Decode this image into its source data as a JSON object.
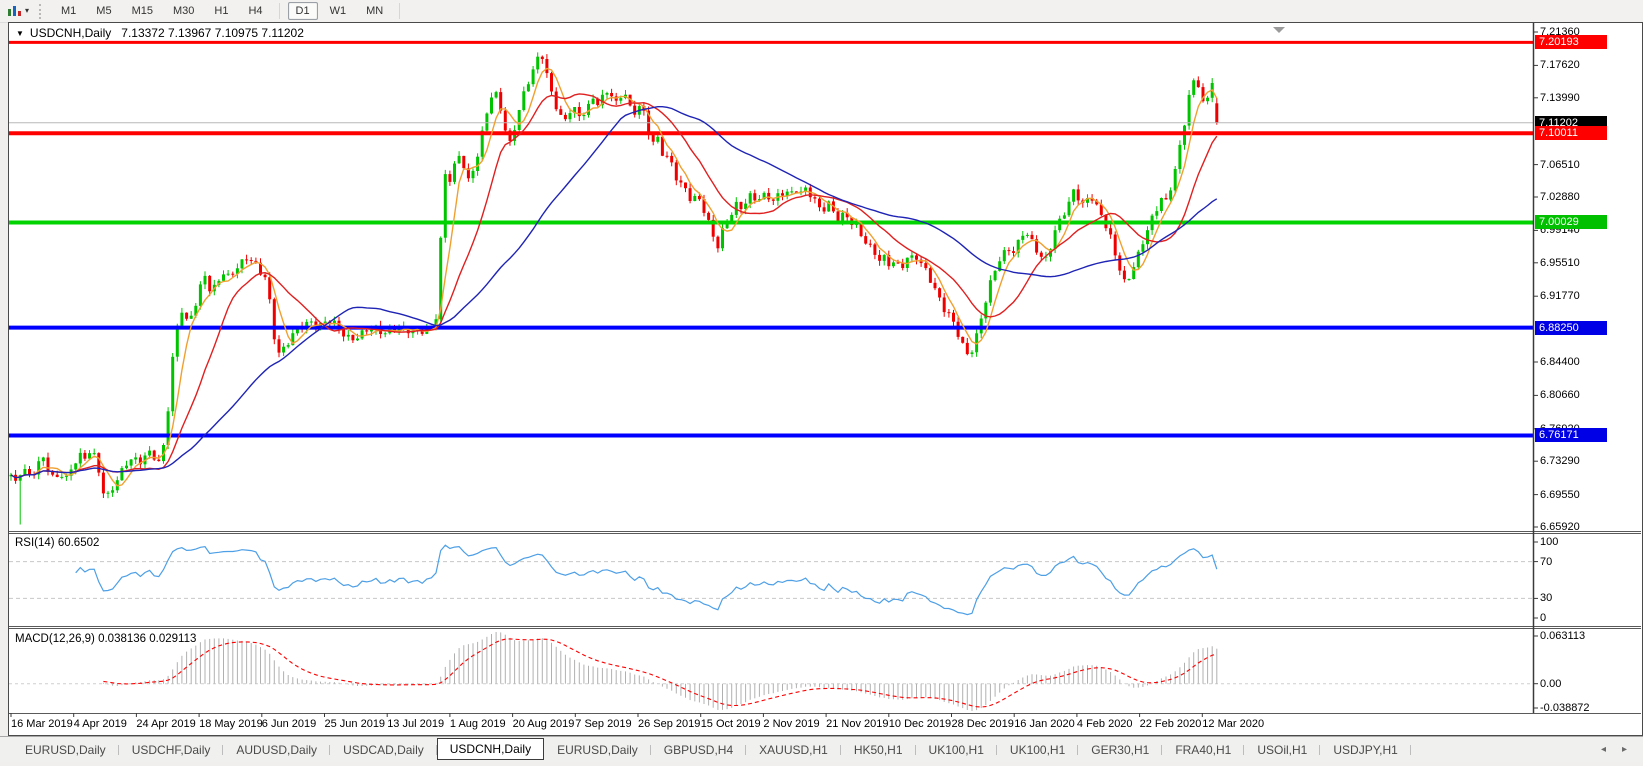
{
  "toolbar": {
    "timeframes": [
      "M1",
      "M5",
      "M15",
      "M30",
      "H1",
      "H4",
      "D1",
      "W1",
      "MN"
    ],
    "active_timeframe": "D1",
    "caret_glyph": "▾"
  },
  "chart": {
    "symbol_period": "USDCNH,Daily",
    "ohlc": "7.13372 7.13967 7.10975 7.11202",
    "collapse_glyph": "▼"
  },
  "chart_data": {
    "type": "candlestick",
    "symbol": "USDCNH",
    "period": "Daily",
    "current_bar": {
      "open": 7.13372,
      "high": 7.13967,
      "low": 7.10975,
      "close": 7.11202
    },
    "candle_colors": {
      "up": "#00c400",
      "down": "#ef0000"
    },
    "y_axis": {
      "top": 7.2136,
      "bottom": 6.6592,
      "ticks": [
        7.2136,
        7.1762,
        7.1399,
        7.0651,
        7.0288,
        6.9914,
        6.9551,
        6.9177,
        6.844,
        6.8066,
        6.7692,
        6.7329,
        6.6955,
        6.6592
      ]
    },
    "x_axis": {
      "labels": [
        "16 Mar 2019",
        "4 Apr 2019",
        "24 Apr 2019",
        "18 May 2019",
        "6 Jun 2019",
        "25 Jun 2019",
        "13 Jul 2019",
        "1 Aug 2019",
        "20 Aug 2019",
        "7 Sep 2019",
        "26 Sep 2019",
        "15 Oct 2019",
        "2 Nov 2019",
        "21 Nov 2019",
        "10 Dec 2019",
        "28 Dec 2019",
        "16 Jan 2020",
        "4 Feb 2020",
        "22 Feb 2020",
        "12 Mar 2020"
      ]
    },
    "levels": [
      {
        "price": 7.20193,
        "color": "#ff0000",
        "thickness": 3,
        "badge_bg": "#ff0000"
      },
      {
        "price": 7.11202,
        "color": "#b8b8b8",
        "thickness": 1,
        "badge_bg": "#000000"
      },
      {
        "price": 7.10011,
        "color": "#ff0000",
        "thickness": 4,
        "badge_bg": "#ff0000"
      },
      {
        "price": 7.00029,
        "color": "#00d300",
        "thickness": 4,
        "badge_bg": "#00c000"
      },
      {
        "price": 6.8825,
        "color": "#0000ff",
        "thickness": 4,
        "badge_bg": "#0000e6"
      },
      {
        "price": 6.76171,
        "color": "#0000ff",
        "thickness": 4,
        "badge_bg": "#0000e6"
      }
    ],
    "moving_averages": [
      {
        "period": 5,
        "color": "#f0a030"
      },
      {
        "period": 14,
        "color": "#e02020"
      },
      {
        "period": 40,
        "color": "#1f24b4"
      }
    ],
    "indicators": {
      "rsi": {
        "label": "RSI(14) 60.6502",
        "period": 14,
        "current": 60.6502,
        "color": "#4d9fe6",
        "levels": [
          70,
          30
        ],
        "scale_labels": [
          "100",
          "70",
          "30",
          "0"
        ]
      },
      "macd": {
        "label": "MACD(12,26,9) 0.038136 0.029113",
        "fast": 12,
        "slow": 26,
        "signal_period": 9,
        "current_macd": 0.038136,
        "current_signal": 0.029113,
        "histogram_color": "#b0b0b0",
        "signal_color": "#ff0000",
        "scale_labels": {
          "top": "0.063113",
          "zero": "0.00",
          "bottom": "-0.038872"
        }
      }
    },
    "price_path": [
      [
        2,
        6.716
      ],
      [
        6,
        6.705
      ],
      [
        10,
        6.72
      ],
      [
        16,
        6.725
      ],
      [
        22,
        6.715
      ],
      [
        28,
        6.73
      ],
      [
        34,
        6.735
      ],
      [
        40,
        6.72
      ],
      [
        46,
        6.71
      ],
      [
        52,
        6.72
      ],
      [
        58,
        6.715
      ],
      [
        64,
        6.73
      ],
      [
        70,
        6.74
      ],
      [
        76,
        6.735
      ],
      [
        82,
        6.745
      ],
      [
        88,
        6.73
      ],
      [
        94,
        6.7
      ],
      [
        100,
        6.695
      ],
      [
        106,
        6.71
      ],
      [
        112,
        6.72
      ],
      [
        118,
        6.73
      ],
      [
        124,
        6.735
      ],
      [
        130,
        6.73
      ],
      [
        136,
        6.74
      ],
      [
        142,
        6.745
      ],
      [
        148,
        6.735
      ],
      [
        152,
        6.73
      ],
      [
        156,
        6.76
      ],
      [
        160,
        6.8
      ],
      [
        164,
        6.85
      ],
      [
        168,
        6.88
      ],
      [
        172,
        6.905
      ],
      [
        178,
        6.89
      ],
      [
        184,
        6.9
      ],
      [
        190,
        6.925
      ],
      [
        196,
        6.94
      ],
      [
        202,
        6.92
      ],
      [
        208,
        6.93
      ],
      [
        214,
        6.945
      ],
      [
        220,
        6.94
      ],
      [
        226,
        6.95
      ],
      [
        232,
        6.955
      ],
      [
        238,
        6.96
      ],
      [
        244,
        6.955
      ],
      [
        250,
        6.945
      ],
      [
        256,
        6.94
      ],
      [
        260,
        6.92
      ],
      [
        264,
        6.88
      ],
      [
        270,
        6.855
      ],
      [
        276,
        6.86
      ],
      [
        282,
        6.87
      ],
      [
        288,
        6.88
      ],
      [
        294,
        6.885
      ],
      [
        302,
        6.89
      ],
      [
        310,
        6.885
      ],
      [
        318,
        6.89
      ],
      [
        326,
        6.885
      ],
      [
        334,
        6.875
      ],
      [
        342,
        6.87
      ],
      [
        350,
        6.875
      ],
      [
        358,
        6.88
      ],
      [
        366,
        6.88
      ],
      [
        374,
        6.875
      ],
      [
        382,
        6.88
      ],
      [
        390,
        6.885
      ],
      [
        398,
        6.88
      ],
      [
        406,
        6.875
      ],
      [
        414,
        6.878
      ],
      [
        422,
        6.882
      ],
      [
        428,
        6.9
      ],
      [
        432,
        6.99
      ],
      [
        436,
        7.055
      ],
      [
        440,
        7.045
      ],
      [
        444,
        7.06
      ],
      [
        448,
        7.065
      ],
      [
        452,
        7.08
      ],
      [
        456,
        7.055
      ],
      [
        460,
        7.045
      ],
      [
        464,
        7.06
      ],
      [
        468,
        7.075
      ],
      [
        472,
        7.095
      ],
      [
        476,
        7.115
      ],
      [
        480,
        7.135
      ],
      [
        484,
        7.145
      ],
      [
        488,
        7.14
      ],
      [
        492,
        7.125
      ],
      [
        496,
        7.105
      ],
      [
        500,
        7.085
      ],
      [
        504,
        7.1
      ],
      [
        508,
        7.12
      ],
      [
        512,
        7.135
      ],
      [
        516,
        7.15
      ],
      [
        520,
        7.16
      ],
      [
        524,
        7.17
      ],
      [
        528,
        7.18
      ],
      [
        532,
        7.19
      ],
      [
        536,
        7.175
      ],
      [
        540,
        7.155
      ],
      [
        544,
        7.14
      ],
      [
        548,
        7.13
      ],
      [
        552,
        7.12
      ],
      [
        556,
        7.115
      ],
      [
        560,
        7.125
      ],
      [
        564,
        7.13
      ],
      [
        568,
        7.12
      ],
      [
        572,
        7.115
      ],
      [
        576,
        7.125
      ],
      [
        580,
        7.13
      ],
      [
        584,
        7.14
      ],
      [
        588,
        7.135
      ],
      [
        592,
        7.14
      ],
      [
        596,
        7.145
      ],
      [
        600,
        7.15
      ],
      [
        604,
        7.14
      ],
      [
        608,
        7.13
      ],
      [
        612,
        7.14
      ],
      [
        616,
        7.145
      ],
      [
        620,
        7.13
      ],
      [
        624,
        7.12
      ],
      [
        628,
        7.13
      ],
      [
        632,
        7.135
      ],
      [
        636,
        7.12
      ],
      [
        640,
        7.1
      ],
      [
        644,
        7.09
      ],
      [
        648,
        7.095
      ],
      [
        652,
        7.08
      ],
      [
        656,
        7.07
      ],
      [
        660,
        7.075
      ],
      [
        664,
        7.06
      ],
      [
        668,
        7.05
      ],
      [
        672,
        7.045
      ],
      [
        676,
        7.04
      ],
      [
        680,
        7.03
      ],
      [
        684,
        7.025
      ],
      [
        688,
        7.03
      ],
      [
        692,
        7.02
      ],
      [
        696,
        7.01
      ],
      [
        700,
        6.998
      ],
      [
        704,
        6.985
      ],
      [
        708,
        6.972
      ],
      [
        712,
        6.988
      ],
      [
        716,
        7.0
      ],
      [
        720,
        7.005
      ],
      [
        724,
        7.015
      ],
      [
        728,
        7.02
      ],
      [
        732,
        7.015
      ],
      [
        736,
        7.02
      ],
      [
        740,
        7.03
      ],
      [
        744,
        7.025
      ],
      [
        748,
        7.03
      ],
      [
        752,
        7.028
      ],
      [
        756,
        7.033
      ],
      [
        760,
        7.03
      ],
      [
        764,
        7.025
      ],
      [
        768,
        7.028
      ],
      [
        772,
        7.033
      ],
      [
        776,
        7.03
      ],
      [
        780,
        7.035
      ],
      [
        784,
        7.03
      ],
      [
        788,
        7.038
      ],
      [
        792,
        7.035
      ],
      [
        796,
        7.04
      ],
      [
        800,
        7.035
      ],
      [
        804,
        7.03
      ],
      [
        808,
        7.02
      ],
      [
        812,
        7.012
      ],
      [
        816,
        7.015
      ],
      [
        820,
        7.02
      ],
      [
        824,
        7.012
      ],
      [
        828,
        7.005
      ],
      [
        832,
        7.008
      ],
      [
        836,
        7.012
      ],
      [
        840,
        7.005
      ],
      [
        844,
        7.0
      ],
      [
        848,
        6.995
      ],
      [
        852,
        6.985
      ],
      [
        856,
        6.978
      ],
      [
        860,
        6.972
      ],
      [
        864,
        6.968
      ],
      [
        868,
        6.962
      ],
      [
        872,
        6.958
      ],
      [
        876,
        6.963
      ],
      [
        880,
        6.955
      ],
      [
        884,
        6.958
      ],
      [
        888,
        6.952
      ],
      [
        892,
        6.948
      ],
      [
        896,
        6.955
      ],
      [
        900,
        6.962
      ],
      [
        904,
        6.958
      ],
      [
        908,
        6.962
      ],
      [
        912,
        6.955
      ],
      [
        916,
        6.95
      ],
      [
        920,
        6.942
      ],
      [
        924,
        6.93
      ],
      [
        928,
        6.922
      ],
      [
        932,
        6.91
      ],
      [
        936,
        6.9
      ],
      [
        940,
        6.895
      ],
      [
        944,
        6.888
      ],
      [
        948,
        6.878
      ],
      [
        952,
        6.868
      ],
      [
        956,
        6.858
      ],
      [
        960,
        6.852
      ],
      [
        964,
        6.862
      ],
      [
        968,
        6.875
      ],
      [
        972,
        6.892
      ],
      [
        976,
        6.908
      ],
      [
        980,
        6.925
      ],
      [
        984,
        6.94
      ],
      [
        988,
        6.952
      ],
      [
        992,
        6.962
      ],
      [
        996,
        6.968
      ],
      [
        1000,
        6.972
      ],
      [
        1004,
        6.968
      ],
      [
        1008,
        6.975
      ],
      [
        1012,
        6.985
      ],
      [
        1016,
        6.99
      ],
      [
        1020,
        6.982
      ],
      [
        1024,
        6.975
      ],
      [
        1028,
        6.968
      ],
      [
        1032,
        6.962
      ],
      [
        1036,
        6.958
      ],
      [
        1040,
        6.97
      ],
      [
        1044,
        6.985
      ],
      [
        1048,
        6.998
      ],
      [
        1052,
        7.005
      ],
      [
        1056,
        7.012
      ],
      [
        1060,
        7.02
      ],
      [
        1064,
        7.035
      ],
      [
        1068,
        7.03
      ],
      [
        1072,
        7.022
      ],
      [
        1076,
        7.018
      ],
      [
        1080,
        7.035
      ],
      [
        1084,
        7.028
      ],
      [
        1088,
        7.018
      ],
      [
        1092,
        7.01
      ],
      [
        1096,
        6.998
      ],
      [
        1100,
        6.988
      ],
      [
        1104,
        6.972
      ],
      [
        1108,
        6.955
      ],
      [
        1112,
        6.945
      ],
      [
        1116,
        6.932
      ],
      [
        1120,
        6.94
      ],
      [
        1124,
        6.952
      ],
      [
        1128,
        6.962
      ],
      [
        1132,
        6.972
      ],
      [
        1136,
        6.985
      ],
      [
        1140,
        6.995
      ],
      [
        1144,
        7.005
      ],
      [
        1148,
        7.015
      ],
      [
        1152,
        7.028
      ],
      [
        1156,
        7.02
      ],
      [
        1160,
        7.035
      ],
      [
        1164,
        7.05
      ],
      [
        1168,
        7.07
      ],
      [
        1172,
        7.092
      ],
      [
        1176,
        7.115
      ],
      [
        1180,
        7.14
      ],
      [
        1184,
        7.155
      ],
      [
        1188,
        7.16
      ],
      [
        1192,
        7.142
      ],
      [
        1196,
        7.125
      ],
      [
        1200,
        7.148
      ],
      [
        1204,
        7.165
      ],
      [
        1208,
        7.112
      ]
    ]
  },
  "tab_bar": {
    "tabs": [
      {
        "label": "EURUSD,Daily",
        "active": false
      },
      {
        "label": "USDCHF,Daily",
        "active": false
      },
      {
        "label": "AUDUSD,Daily",
        "active": false
      },
      {
        "label": "USDCAD,Daily",
        "active": false
      },
      {
        "label": "USDCNH,Daily",
        "active": true
      },
      {
        "label": "EURUSD,Daily",
        "active": false
      },
      {
        "label": "GBPUSD,H4",
        "active": false
      },
      {
        "label": "XAUUSD,H1",
        "active": false
      },
      {
        "label": "HK50,H1",
        "active": false
      },
      {
        "label": "UK100,H1",
        "active": false
      },
      {
        "label": "UK100,H1",
        "active": false
      },
      {
        "label": "GER30,H1",
        "active": false
      },
      {
        "label": "FRA40,H1",
        "active": false
      },
      {
        "label": "USOil,H1",
        "active": false
      },
      {
        "label": "USDJPY,H1",
        "active": false
      }
    ],
    "scroll_left_glyph": "◂",
    "scroll_right_glyph": "▸"
  }
}
